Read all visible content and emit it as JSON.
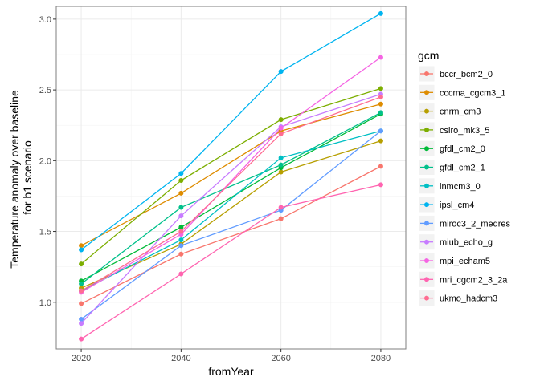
{
  "chart_data": {
    "type": "line",
    "title": "",
    "xlabel": "fromYear",
    "ylabel_lines": [
      "Temperature anomaly over baseline",
      "for b1 scenario"
    ],
    "x": [
      2020,
      2040,
      2060,
      2080
    ],
    "xlim": [
      2015,
      2085
    ],
    "ylim": [
      0.67,
      3.09
    ],
    "xticks": [
      2020,
      2040,
      2060,
      2080
    ],
    "yticks": [
      1.0,
      1.5,
      2.0,
      2.5,
      3.0
    ],
    "ytick_labels": [
      "1.0",
      "1.5",
      "2.0",
      "2.5",
      "3.0"
    ],
    "grid": true,
    "legend": {
      "title": "gcm",
      "placement": "right"
    },
    "series": [
      {
        "name": "bccr_bcm2_0",
        "color": "#F8766D",
        "values": [
          0.99,
          1.34,
          1.59,
          1.96
        ]
      },
      {
        "name": "cccma_cgcm3_1",
        "color": "#DE8C00",
        "values": [
          1.4,
          1.77,
          2.21,
          2.4
        ]
      },
      {
        "name": "cnrm_cm3",
        "color": "#B79F00",
        "values": [
          1.1,
          1.41,
          1.92,
          2.14
        ]
      },
      {
        "name": "csiro_mk3_5",
        "color": "#7CAE00",
        "values": [
          1.27,
          1.86,
          2.29,
          2.51
        ]
      },
      {
        "name": "gfdl_cm2_0",
        "color": "#00BA38",
        "values": [
          1.15,
          1.53,
          1.95,
          2.33
        ]
      },
      {
        "name": "gfdl_cm2_1",
        "color": "#00C08B",
        "values": [
          1.13,
          1.67,
          1.97,
          2.34
        ]
      },
      {
        "name": "inmcm3_0",
        "color": "#00BFC4",
        "values": [
          1.08,
          1.44,
          2.02,
          2.21
        ]
      },
      {
        "name": "ipsl_cm4",
        "color": "#00B4F0",
        "values": [
          1.37,
          1.91,
          2.63,
          3.04
        ]
      },
      {
        "name": "miroc3_2_medres",
        "color": "#619CFF",
        "values": [
          0.88,
          1.4,
          1.65,
          2.21
        ]
      },
      {
        "name": "miub_echo_g",
        "color": "#C77CFF",
        "values": [
          0.85,
          1.61,
          2.24,
          2.47
        ]
      },
      {
        "name": "mpi_echam5",
        "color": "#F564E3",
        "values": [
          1.07,
          1.48,
          2.23,
          2.73
        ]
      },
      {
        "name": "mri_cgcm2_3_2a",
        "color": "#FF64B0",
        "values": [
          0.74,
          1.2,
          1.67,
          1.83
        ]
      },
      {
        "name": "ukmo_hadcm3",
        "color": "#FF6C91",
        "values": [
          1.08,
          1.5,
          2.19,
          2.45
        ]
      }
    ]
  }
}
